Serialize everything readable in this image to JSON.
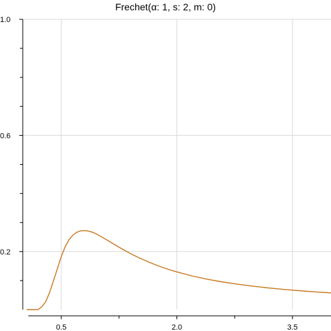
{
  "chart_data": {
    "type": "line",
    "title": "Frechet(α: 1, s: 2, m: 0)",
    "xlabel": "",
    "ylabel": "",
    "xlim": [
      0.0,
      4.0
    ],
    "ylim": [
      0.0,
      1.0
    ],
    "x_ticks": [
      0.5,
      2.0,
      3.5
    ],
    "x_tick_labels": [
      "0.5",
      "2.0",
      "3.5"
    ],
    "x_minor_ticks": [
      1.25,
      2.75
    ],
    "y_ticks": [
      0.2,
      0.6,
      1.0
    ],
    "y_tick_labels": [
      "0.2",
      "0.6",
      "1.0"
    ],
    "y_minor_ticks": [
      0.1,
      0.3,
      0.4,
      0.5,
      0.7,
      0.8,
      0.9
    ],
    "grid": true,
    "line_color": "#c87820",
    "series": [
      {
        "alpha": 1,
        "s": 2,
        "m": 0,
        "x": [
          0.05,
          0.1,
          0.15,
          0.2,
          0.25,
          0.3,
          0.35,
          0.4,
          0.45,
          0.5,
          0.55,
          0.6,
          0.65,
          0.7,
          0.75,
          0.8,
          0.85,
          0.9,
          0.95,
          1.0,
          1.1,
          1.2,
          1.3,
          1.4,
          1.5,
          1.6,
          1.7,
          1.8,
          1.9,
          2.0,
          2.2,
          2.4,
          2.6,
          2.8,
          3.0,
          3.2,
          3.4,
          3.6,
          3.8,
          4.0
        ],
        "y": [
          0.0,
          0.0,
          0.0,
          0.0002,
          0.0107,
          0.0282,
          0.0602,
          0.1003,
          0.1417,
          0.1832,
          0.2163,
          0.2405,
          0.2566,
          0.2663,
          0.2712,
          0.2722,
          0.2706,
          0.267,
          0.2614,
          0.2543,
          0.2387,
          0.2227,
          0.2073,
          0.1928,
          0.1797,
          0.1677,
          0.1567,
          0.1467,
          0.1378,
          0.1299,
          0.1158,
          0.1044,
          0.095,
          0.087,
          0.0802,
          0.0745,
          0.0694,
          0.065,
          0.0611,
          0.0576
        ]
      }
    ]
  }
}
